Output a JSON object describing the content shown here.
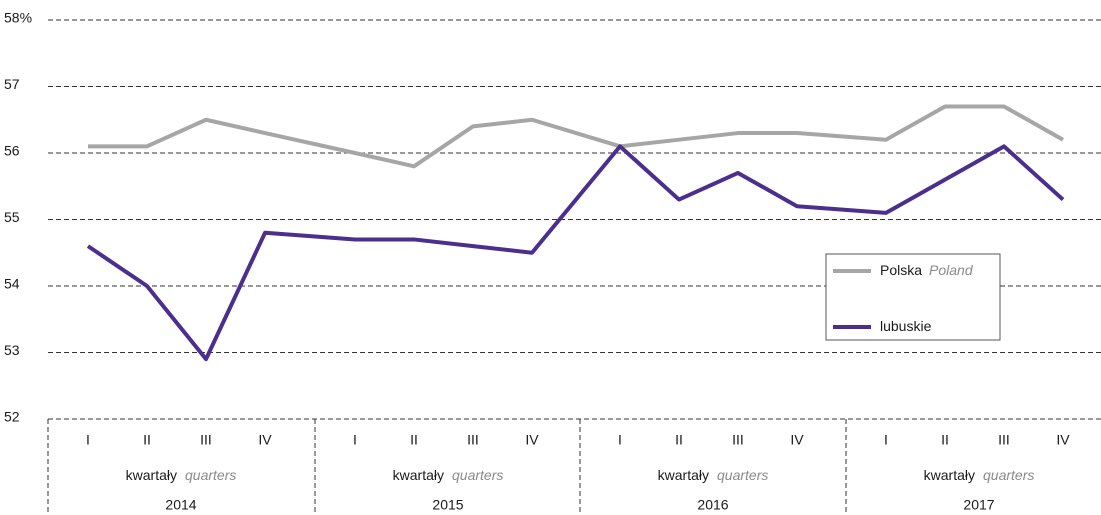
{
  "chart_data": {
    "type": "line",
    "categories": [
      "I",
      "II",
      "III",
      "IV",
      "I",
      "II",
      "III",
      "IV",
      "I",
      "II",
      "III",
      "IV",
      "I",
      "II",
      "III",
      "IV"
    ],
    "groups": [
      "2014",
      "2015",
      "2016",
      "2017"
    ],
    "x_label": "kwartały",
    "x_label_en": "quarters",
    "series": [
      {
        "name": "Polska",
        "name_en": "Poland",
        "color": "#a6a6a6",
        "values": [
          56.1,
          56.1,
          56.5,
          56.3,
          56.0,
          55.8,
          56.4,
          56.5,
          56.1,
          56.2,
          56.3,
          56.3,
          56.2,
          56.7,
          56.7,
          56.2
        ]
      },
      {
        "name": "lubuskie",
        "color": "#4b2e8e",
        "values": [
          54.6,
          54.0,
          52.9,
          54.8,
          54.7,
          54.7,
          54.6,
          54.5,
          56.1,
          55.3,
          55.7,
          55.2,
          55.1,
          55.6,
          56.1,
          55.3
        ]
      }
    ],
    "ylim": [
      52,
      58
    ],
    "yticks": [
      52,
      53,
      54,
      55,
      56,
      57,
      {
        "value": 58,
        "label": "58%"
      }
    ],
    "grid": true
  }
}
